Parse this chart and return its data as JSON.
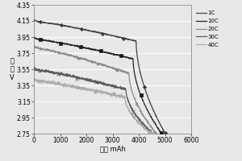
{
  "xlabel": "容量 mAh",
  "ylabel_lines": [
    "电",
    "压",
    "V"
  ],
  "xlim": [
    0,
    6000
  ],
  "ylim": [
    2.75,
    4.35
  ],
  "yticks": [
    2.75,
    2.95,
    3.15,
    3.35,
    3.55,
    3.75,
    3.95,
    4.15,
    4.35
  ],
  "xticks": [
    0,
    1000,
    2000,
    3000,
    4000,
    5000,
    6000
  ],
  "series": [
    {
      "label": "1C",
      "color": "#3a3a3a",
      "marker": "D",
      "markercolor": "#3a3a3a",
      "start_v": 4.17,
      "plateau_v": 3.9,
      "end_cap": 5000,
      "end_v": 2.76,
      "scatter_sigma": 0.003
    },
    {
      "label": "10C",
      "color": "#1a1a1a",
      "marker": "s",
      "markercolor": "#1a1a1a",
      "start_v": 3.95,
      "plateau_v": 3.68,
      "end_cap": 4850,
      "end_v": 2.76,
      "scatter_sigma": 0.004
    },
    {
      "label": "20C",
      "color": "#888888",
      "marker": "^",
      "markercolor": "#888888",
      "start_v": 3.85,
      "plateau_v": 3.5,
      "end_cap": 4650,
      "end_v": 2.76,
      "scatter_sigma": 0.006
    },
    {
      "label": "30C",
      "color": "#555555",
      "marker": "x",
      "markercolor": "#555555",
      "start_v": 3.57,
      "plateau_v": 3.3,
      "end_cap": 4500,
      "end_v": 2.76,
      "scatter_sigma": 0.008
    },
    {
      "label": "40C",
      "color": "#aaaaaa",
      "marker": "D",
      "markercolor": "#aaaaaa",
      "start_v": 3.43,
      "plateau_v": 3.2,
      "end_cap": 4450,
      "end_v": 2.76,
      "scatter_sigma": 0.01
    }
  ],
  "background_color": "#e8e8e8",
  "grid_color": "#ffffff",
  "legend_fontsize": 5.0,
  "axis_fontsize": 6.0,
  "tick_fontsize": 5.5,
  "linewidth": 0.9
}
